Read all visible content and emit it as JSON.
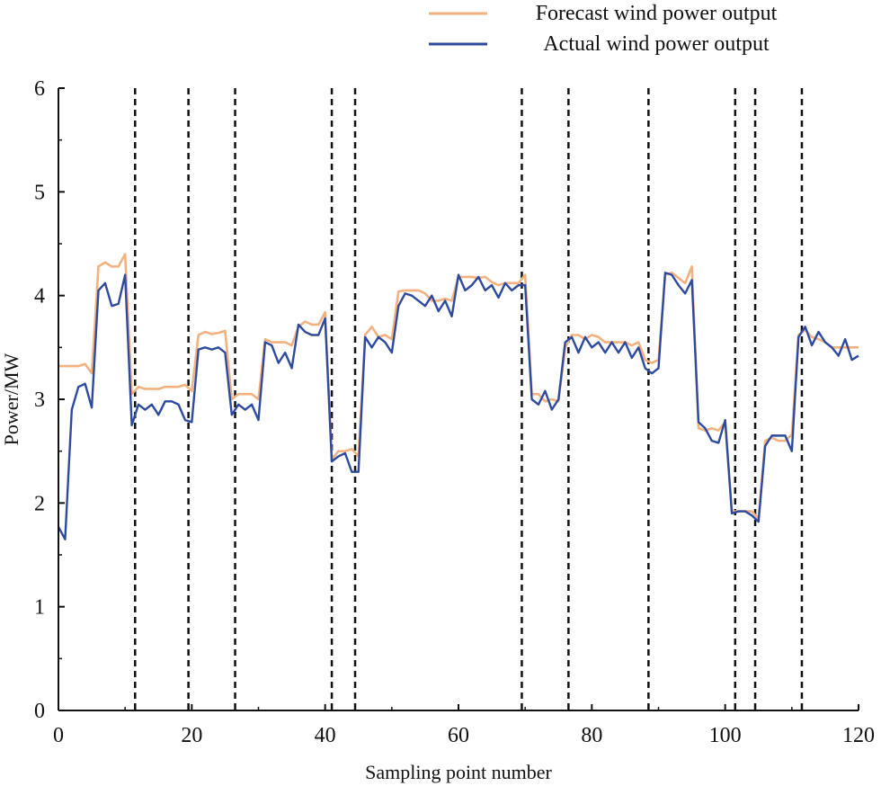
{
  "chart_data": {
    "type": "line",
    "title": "",
    "xlabel": "Sampling point number",
    "ylabel": "Power/MW",
    "xlim": [
      0,
      120
    ],
    "ylim": [
      0,
      6
    ],
    "xticks": [
      0,
      20,
      40,
      60,
      80,
      100,
      120
    ],
    "yticks": [
      0,
      1,
      2,
      3,
      4,
      5,
      6
    ],
    "xtick_labels": [
      "0",
      "20",
      "40",
      "60",
      "80",
      "100",
      "120"
    ],
    "ytick_labels": [
      "0",
      "1",
      "2",
      "3",
      "4",
      "5",
      "6"
    ],
    "grid": false,
    "legend_position": "top-right",
    "vertical_markers": [
      11.5,
      19.5,
      26.5,
      41,
      44.5,
      69.5,
      76.5,
      88.5,
      101.5,
      104.5,
      111.5
    ],
    "series": [
      {
        "name": "Forecast wind power output",
        "color": "#F2B27F",
        "x": [
          0,
          1,
          2,
          3,
          4,
          5,
          6,
          7,
          8,
          9,
          10,
          11,
          12,
          13,
          14,
          15,
          16,
          17,
          18,
          19,
          20,
          21,
          22,
          23,
          24,
          25,
          26,
          27,
          28,
          29,
          30,
          31,
          32,
          33,
          34,
          35,
          36,
          37,
          38,
          39,
          40,
          41,
          42,
          43,
          44,
          45,
          46,
          47,
          48,
          49,
          50,
          51,
          52,
          53,
          54,
          55,
          56,
          57,
          58,
          59,
          60,
          61,
          62,
          63,
          64,
          65,
          66,
          67,
          68,
          69,
          70,
          71,
          72,
          73,
          74,
          75,
          76,
          77,
          78,
          79,
          80,
          81,
          82,
          83,
          84,
          85,
          86,
          87,
          88,
          89,
          90,
          91,
          92,
          93,
          94,
          95,
          96,
          97,
          98,
          99,
          100,
          101,
          102,
          103,
          104,
          105,
          106,
          107,
          108,
          109,
          110,
          111,
          112,
          113,
          114,
          115,
          116,
          117,
          118,
          119,
          120
        ],
        "values": [
          3.32,
          3.32,
          3.32,
          3.32,
          3.34,
          3.25,
          4.28,
          4.32,
          4.28,
          4.28,
          4.4,
          3.05,
          3.12,
          3.1,
          3.1,
          3.1,
          3.12,
          3.12,
          3.12,
          3.14,
          3.08,
          3.62,
          3.65,
          3.63,
          3.64,
          3.66,
          3.0,
          3.05,
          3.05,
          3.05,
          3.0,
          3.58,
          3.55,
          3.55,
          3.55,
          3.52,
          3.7,
          3.75,
          3.72,
          3.72,
          3.84,
          2.42,
          2.5,
          2.5,
          2.52,
          2.45,
          3.62,
          3.7,
          3.6,
          3.62,
          3.58,
          4.04,
          4.05,
          4.05,
          4.05,
          4.02,
          3.95,
          3.95,
          3.97,
          3.95,
          4.18,
          4.18,
          4.18,
          4.17,
          4.18,
          4.13,
          4.1,
          4.12,
          4.12,
          4.12,
          4.2,
          3.05,
          3.05,
          2.98,
          3.0,
          2.98,
          3.5,
          3.62,
          3.62,
          3.58,
          3.62,
          3.6,
          3.55,
          3.55,
          3.55,
          3.55,
          3.52,
          3.55,
          3.38,
          3.35,
          3.38,
          4.2,
          4.22,
          4.17,
          4.12,
          4.28,
          2.72,
          2.7,
          2.72,
          2.7,
          2.78,
          1.92,
          1.92,
          1.92,
          1.92,
          1.85,
          2.6,
          2.63,
          2.6,
          2.6,
          2.66,
          3.62,
          3.67,
          3.6,
          3.58,
          3.55,
          3.5,
          3.5,
          3.5,
          3.5,
          3.5
        ]
      },
      {
        "name": "Actual wind power output",
        "color": "#2E4A9E",
        "x": [
          0,
          1,
          2,
          3,
          4,
          5,
          6,
          7,
          8,
          9,
          10,
          11,
          12,
          13,
          14,
          15,
          16,
          17,
          18,
          19,
          20,
          21,
          22,
          23,
          24,
          25,
          26,
          27,
          28,
          29,
          30,
          31,
          32,
          33,
          34,
          35,
          36,
          37,
          38,
          39,
          40,
          41,
          42,
          43,
          44,
          45,
          46,
          47,
          48,
          49,
          50,
          51,
          52,
          53,
          54,
          55,
          56,
          57,
          58,
          59,
          60,
          61,
          62,
          63,
          64,
          65,
          66,
          67,
          68,
          69,
          70,
          71,
          72,
          73,
          74,
          75,
          76,
          77,
          78,
          79,
          80,
          81,
          82,
          83,
          84,
          85,
          86,
          87,
          88,
          89,
          90,
          91,
          92,
          93,
          94,
          95,
          96,
          97,
          98,
          99,
          100,
          101,
          102,
          103,
          104,
          105,
          106,
          107,
          108,
          109,
          110,
          111,
          112,
          113,
          114,
          115,
          116,
          117,
          118,
          119,
          120
        ],
        "values": [
          1.77,
          1.65,
          2.9,
          3.12,
          3.15,
          2.92,
          4.05,
          4.12,
          3.9,
          3.92,
          4.2,
          2.75,
          2.95,
          2.9,
          2.95,
          2.85,
          2.98,
          2.98,
          2.95,
          2.8,
          2.78,
          3.48,
          3.5,
          3.48,
          3.5,
          3.45,
          2.85,
          2.95,
          2.9,
          2.95,
          2.8,
          3.55,
          3.52,
          3.35,
          3.45,
          3.3,
          3.72,
          3.65,
          3.62,
          3.62,
          3.78,
          2.4,
          2.45,
          2.48,
          2.3,
          2.3,
          3.6,
          3.5,
          3.6,
          3.55,
          3.45,
          3.9,
          4.02,
          4.0,
          3.95,
          3.9,
          4.0,
          3.85,
          3.95,
          3.8,
          4.2,
          4.05,
          4.1,
          4.18,
          4.05,
          4.1,
          3.98,
          4.12,
          4.05,
          4.1,
          4.1,
          3.0,
          2.95,
          3.08,
          2.9,
          3.0,
          3.55,
          3.6,
          3.45,
          3.6,
          3.5,
          3.55,
          3.45,
          3.55,
          3.45,
          3.55,
          3.4,
          3.5,
          3.3,
          3.25,
          3.3,
          4.22,
          4.2,
          4.1,
          4.02,
          4.15,
          2.78,
          2.72,
          2.6,
          2.58,
          2.8,
          1.9,
          1.92,
          1.92,
          1.88,
          1.82,
          2.55,
          2.65,
          2.65,
          2.65,
          2.5,
          3.6,
          3.7,
          3.52,
          3.65,
          3.55,
          3.5,
          3.42,
          3.58,
          3.38,
          3.42
        ]
      }
    ]
  }
}
